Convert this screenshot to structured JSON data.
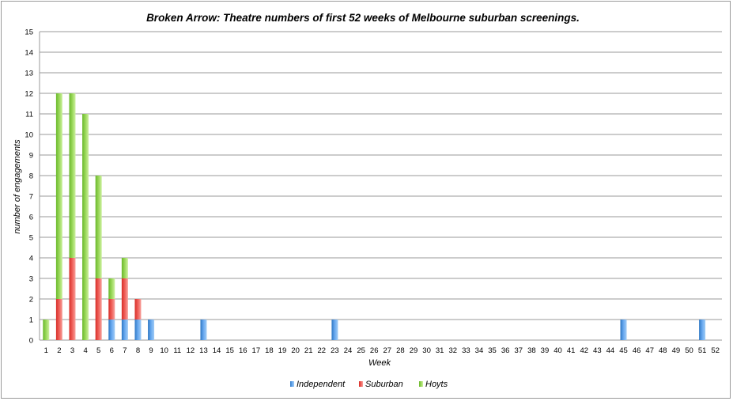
{
  "chart_data": {
    "type": "bar",
    "stacked": true,
    "title": "Broken Arrow: Theatre numbers of first 52 weeks of Melbourne suburban screenings.",
    "xlabel": "Week",
    "ylabel": "number of engagements",
    "ylim": [
      0,
      15
    ],
    "yticks": [
      "0",
      "1",
      "2",
      "3",
      "4",
      "5",
      "6",
      "7",
      "8",
      "9",
      "10",
      "11",
      "12",
      "13",
      "14",
      "15"
    ],
    "categories": [
      "1",
      "2",
      "3",
      "4",
      "5",
      "6",
      "7",
      "8",
      "9",
      "10",
      "11",
      "12",
      "13",
      "14",
      "15",
      "16",
      "17",
      "18",
      "19",
      "20",
      "21",
      "22",
      "23",
      "24",
      "25",
      "26",
      "27",
      "28",
      "29",
      "30",
      "31",
      "32",
      "33",
      "34",
      "35",
      "36",
      "37",
      "38",
      "39",
      "40",
      "41",
      "42",
      "43",
      "44",
      "45",
      "46",
      "47",
      "48",
      "49",
      "50",
      "51",
      "52"
    ],
    "grid": true,
    "legend_position": "bottom",
    "series": [
      {
        "name": "Independent",
        "color": "#4a90d9",
        "values": [
          0,
          0,
          0,
          0,
          0,
          1,
          1,
          1,
          1,
          0,
          0,
          0,
          1,
          0,
          0,
          0,
          0,
          0,
          0,
          0,
          0,
          0,
          1,
          0,
          0,
          0,
          0,
          0,
          0,
          0,
          0,
          0,
          0,
          0,
          0,
          0,
          0,
          0,
          0,
          0,
          0,
          0,
          0,
          0,
          1,
          0,
          0,
          0,
          0,
          0,
          1,
          0
        ]
      },
      {
        "name": "Suburban",
        "color": "#e8403a",
        "values": [
          0,
          2,
          4,
          0,
          3,
          1,
          2,
          1,
          0,
          0,
          0,
          0,
          0,
          0,
          0,
          0,
          0,
          0,
          0,
          0,
          0,
          0,
          0,
          0,
          0,
          0,
          0,
          0,
          0,
          0,
          0,
          0,
          0,
          0,
          0,
          0,
          0,
          0,
          0,
          0,
          0,
          0,
          0,
          0,
          0,
          0,
          0,
          0,
          0,
          0,
          0,
          0
        ]
      },
      {
        "name": "Hoyts",
        "color": "#7cc43a",
        "values": [
          1,
          10,
          8,
          11,
          5,
          1,
          1,
          0,
          0,
          0,
          0,
          0,
          0,
          0,
          0,
          0,
          0,
          0,
          0,
          0,
          0,
          0,
          0,
          0,
          0,
          0,
          0,
          0,
          0,
          0,
          0,
          0,
          0,
          0,
          0,
          0,
          0,
          0,
          0,
          0,
          0,
          0,
          0,
          0,
          0,
          0,
          0,
          0,
          0,
          0,
          0,
          0
        ]
      }
    ]
  }
}
